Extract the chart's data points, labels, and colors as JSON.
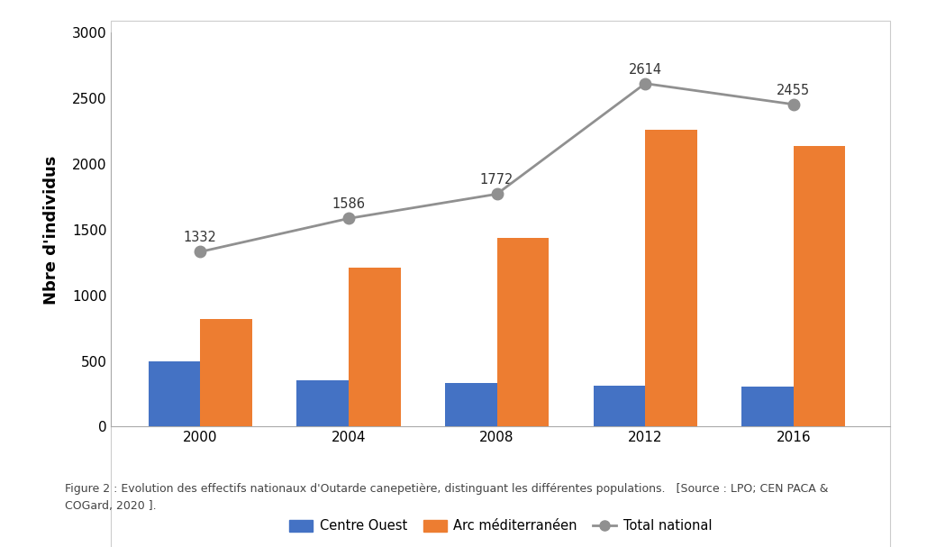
{
  "years": [
    2000,
    2004,
    2008,
    2012,
    2016
  ],
  "centre_ouest": [
    500,
    350,
    330,
    315,
    305
  ],
  "arc_mediterraneen": [
    820,
    1210,
    1435,
    2260,
    2135
  ],
  "total_national": [
    1332,
    1586,
    1772,
    2614,
    2455
  ],
  "total_labels": [
    "1332",
    "1586",
    "1772",
    "2614",
    "2455"
  ],
  "bar_width": 0.35,
  "color_centre_ouest": "#4472C4",
  "color_arc_med": "#ED7D31",
  "color_total": "#909090",
  "ylabel": "Nbre d'individus",
  "ylim": [
    0,
    3000
  ],
  "yticks": [
    0,
    500,
    1000,
    1500,
    2000,
    2500,
    3000
  ],
  "legend_centre_ouest": "Centre Ouest",
  "legend_arc_med": "Arc méditerranéen",
  "legend_total": "Total national",
  "caption_line1": "Figure 2 : Evolution des effectifs nationaux d'Outarde canepetière, distinguant les différentes populations.   [Source : LPO; CEN PACA &",
  "caption_line2": "COGard, 2020 ].",
  "background_color": "#ffffff",
  "annotation_fontsize": 10.5,
  "axis_fontsize": 13,
  "tick_fontsize": 11,
  "legend_fontsize": 10.5,
  "caption_fontsize": 9
}
